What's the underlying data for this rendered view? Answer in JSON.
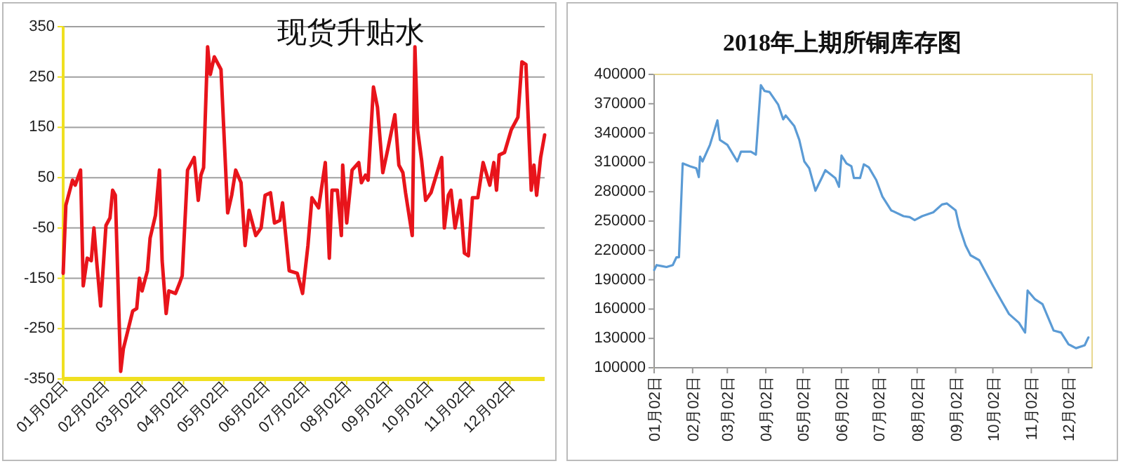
{
  "chart_data": [
    {
      "type": "line",
      "title": "现货升贴水",
      "grid": "y",
      "ylim": [
        -350,
        350
      ],
      "yticks": [
        -350,
        -250,
        -150,
        -50,
        50,
        150,
        250,
        350
      ],
      "xlim": [
        "--01-02",
        "--12-28"
      ],
      "xticks": [
        {
          "value": "--01-02",
          "label": "01月02日"
        },
        {
          "value": "--02-02",
          "label": "02月02日"
        },
        {
          "value": "--03-02",
          "label": "03月02日"
        },
        {
          "value": "--04-02",
          "label": "04月02日"
        },
        {
          "value": "--05-02",
          "label": "05月02日"
        },
        {
          "value": "--06-02",
          "label": "06月02日"
        },
        {
          "value": "--07-02",
          "label": "07月02日"
        },
        {
          "value": "--08-02",
          "label": "08月02日"
        },
        {
          "value": "--09-02",
          "label": "09月02日"
        },
        {
          "value": "--10-02",
          "label": "10月02日"
        },
        {
          "value": "--11-02",
          "label": "11月02日"
        },
        {
          "value": "--12-02",
          "label": "12月02日"
        }
      ],
      "x": [
        "--01-02",
        "--01-04",
        "--01-09",
        "--01-11",
        "--01-13",
        "--01-15",
        "--01-17",
        "--01-20",
        "--01-23",
        "--01-25",
        "--01-27",
        "--01-30",
        "--02-03",
        "--02-06",
        "--02-08",
        "--02-10",
        "--02-14",
        "--02-16",
        "--02-23",
        "--02-26",
        "--02-28",
        "--03-02",
        "--03-06",
        "--03-08",
        "--03-12",
        "--03-15",
        "--03-17",
        "--03-20",
        "--03-22",
        "--03-27",
        "--03-30",
        "--04-01",
        "--04-05",
        "--04-08",
        "--04-10",
        "--04-13",
        "--04-15",
        "--04-17",
        "--04-20",
        "--04-22",
        "--04-25",
        "--04-27",
        "--04-30",
        "--05-05",
        "--05-08",
        "--05-11",
        "--05-15",
        "--05-18",
        "--05-21",
        "--05-26",
        "--05-30",
        "--06-02",
        "--06-06",
        "--06-09",
        "--06-13",
        "--06-15",
        "--06-20",
        "--06-26",
        "--06-30",
        "--07-04",
        "--07-07",
        "--07-12",
        "--07-17",
        "--07-20",
        "--07-22",
        "--07-26",
        "--07-29",
        "--07-30",
        "--08-02",
        "--08-06",
        "--08-11",
        "--08-13",
        "--08-16",
        "--08-18",
        "--08-22",
        "--08-25",
        "--08-29",
        "--09-02",
        "--09-07",
        "--09-10",
        "--09-13",
        "--09-15",
        "--09-20",
        "--09-22",
        "--09-24",
        "--09-27",
        "--09-30",
        "--10-04",
        "--10-12",
        "--10-14",
        "--10-17",
        "--10-19",
        "--10-22",
        "--10-26",
        "--10-29",
        "--11-01",
        "--11-04",
        "--11-08",
        "--11-12",
        "--11-17",
        "--11-20",
        "--11-22",
        "--11-24",
        "--11-28",
        "--12-03",
        "--12-08",
        "--12-11",
        "--12-14",
        "--12-18",
        "--12-20",
        "--12-22",
        "--12-25",
        "--12-28"
      ],
      "series": [
        {
          "color": "#e8141b",
          "values": [
            -140,
            -5,
            45,
            35,
            50,
            65,
            -165,
            -110,
            -115,
            -50,
            -115,
            -205,
            -45,
            -30,
            25,
            15,
            -335,
            -290,
            -215,
            -210,
            -150,
            -175,
            -135,
            -70,
            -25,
            65,
            -115,
            -220,
            -175,
            -180,
            -160,
            -145,
            65,
            80,
            90,
            5,
            55,
            70,
            310,
            255,
            290,
            280,
            265,
            -20,
            15,
            65,
            40,
            -85,
            -15,
            -65,
            -50,
            15,
            20,
            -40,
            -35,
            0,
            -135,
            -140,
            -180,
            -85,
            10,
            -10,
            80,
            -110,
            25,
            25,
            -65,
            75,
            -40,
            65,
            80,
            40,
            55,
            45,
            230,
            190,
            60,
            110,
            175,
            75,
            60,
            20,
            -65,
            310,
            145,
            85,
            5,
            20,
            90,
            -50,
            15,
            25,
            -50,
            5,
            -100,
            -105,
            10,
            10,
            80,
            35,
            80,
            25,
            95,
            100,
            145,
            170,
            280,
            275,
            25,
            75,
            15,
            90,
            135
          ]
        }
      ]
    },
    {
      "type": "line",
      "title": "2018年上期所铜库存图",
      "ylim": [
        100000,
        400000
      ],
      "yticks": [
        100000,
        130000,
        160000,
        190000,
        220000,
        250000,
        280000,
        310000,
        340000,
        370000,
        400000
      ],
      "xlim": [
        "--01-02",
        "--12-21"
      ],
      "xticks": [
        {
          "value": "--01-02",
          "label": "01月02日"
        },
        {
          "value": "--02-02",
          "label": "02月02日"
        },
        {
          "value": "--03-02",
          "label": "03月02日"
        },
        {
          "value": "--04-02",
          "label": "04月02日"
        },
        {
          "value": "--05-02",
          "label": "05月02日"
        },
        {
          "value": "--06-02",
          "label": "06月02日"
        },
        {
          "value": "--07-02",
          "label": "07月02日"
        },
        {
          "value": "--08-02",
          "label": "08月02日"
        },
        {
          "value": "--09-02",
          "label": "09月02日"
        },
        {
          "value": "--10-02",
          "label": "10月02日"
        },
        {
          "value": "--11-02",
          "label": "11月02日"
        },
        {
          "value": "--12-02",
          "label": "12月02日"
        }
      ],
      "x": [
        "--01-02",
        "--01-04",
        "--01-08",
        "--01-12",
        "--01-17",
        "--01-20",
        "--01-22",
        "--01-25",
        "--01-31",
        "--02-05",
        "--02-07",
        "--02-08",
        "--02-10",
        "--02-16",
        "--02-22",
        "--02-24",
        "--03-02",
        "--03-10",
        "--03-13",
        "--03-21",
        "--03-25",
        "--03-29",
        "--04-01",
        "--04-05",
        "--04-12",
        "--04-16",
        "--04-18",
        "--04-25",
        "--04-29",
        "--05-03",
        "--05-07",
        "--05-12",
        "--05-17",
        "--05-20",
        "--05-25",
        "--05-28",
        "--05-31",
        "--06-02",
        "--06-06",
        "--06-10",
        "--06-12",
        "--06-17",
        "--06-20",
        "--06-24",
        "--06-30",
        "--07-05",
        "--07-12",
        "--07-22",
        "--07-27",
        "--07-31",
        "--08-06",
        "--08-15",
        "--08-22",
        "--08-26",
        "--09-02",
        "--09-05",
        "--09-10",
        "--09-14",
        "--09-21",
        "--10-02",
        "--10-10",
        "--10-15",
        "--10-23",
        "--10-28",
        "--10-30",
        "--11-05",
        "--11-11",
        "--11-20",
        "--11-26",
        "--12-02",
        "--12-08",
        "--12-15",
        "--12-18"
      ],
      "series": [
        {
          "color": "#5b9bd5",
          "values": [
            200000,
            205000,
            204000,
            203000,
            205000,
            213000,
            213000,
            309000,
            306000,
            304000,
            295000,
            316000,
            311000,
            328000,
            353000,
            333000,
            328000,
            311000,
            321000,
            321000,
            318000,
            389000,
            383000,
            382000,
            369000,
            354000,
            358000,
            347000,
            333000,
            311000,
            304000,
            281000,
            294000,
            302000,
            297000,
            294000,
            285000,
            317000,
            309000,
            306000,
            294000,
            294000,
            308000,
            305000,
            292000,
            275000,
            261000,
            255000,
            254000,
            251000,
            255000,
            259000,
            267000,
            268000,
            261000,
            244000,
            225000,
            215000,
            210000,
            184000,
            166000,
            155000,
            146000,
            136000,
            179000,
            170000,
            165000,
            138000,
            136000,
            124000,
            120000,
            123000,
            131000
          ]
        }
      ]
    }
  ]
}
